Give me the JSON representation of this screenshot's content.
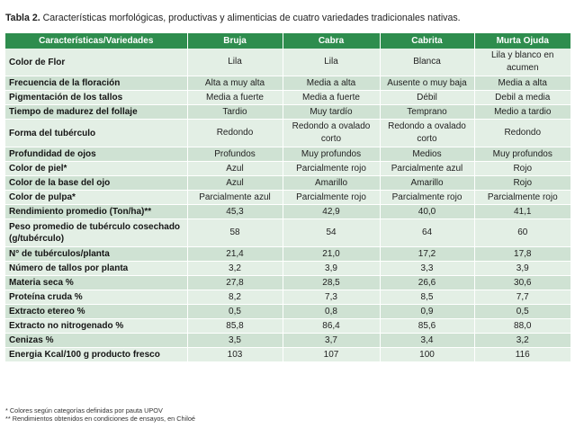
{
  "caption": {
    "label": "Tabla 2.",
    "text": "Características morfológicas, productivas y alimenticias de cuatro variedades tradicionales nativas."
  },
  "table": {
    "headers": [
      "Características/Variedades",
      "Bruja",
      "Cabra",
      "Cabrita",
      "Murta Ojuda"
    ],
    "rows": [
      {
        "label": "Color de Flor",
        "values": [
          "Lila",
          "Lila",
          "Blanca",
          "Lila y blanco en acumen"
        ],
        "tall": true
      },
      {
        "label": "Frecuencia de la floración",
        "values": [
          "Alta a muy alta",
          "Media a alta",
          "Ausente o muy baja",
          "Media a alta"
        ]
      },
      {
        "label": "Pigmentación de los tallos",
        "values": [
          "Media a fuerte",
          "Media a fuerte",
          "Débil",
          "Debil a media"
        ]
      },
      {
        "label": "Tiempo de madurez del follaje",
        "values": [
          "Tardio",
          "Muy tardío",
          "Temprano",
          "Medio a tardio"
        ]
      },
      {
        "label": "Forma del tubérculo",
        "values": [
          "Redondo",
          "Redondo a ovalado corto",
          "Redondo a ovalado corto",
          "Redondo"
        ],
        "tall": true
      },
      {
        "label": "Profundidad de ojos",
        "values": [
          "Profundos",
          "Muy profundos",
          "Medios",
          "Muy profundos"
        ]
      },
      {
        "label": "Color de piel*",
        "values": [
          "Azul",
          "Parcialmente rojo",
          "Parcialmente azul",
          "Rojo"
        ]
      },
      {
        "label": "Color de la base del ojo",
        "values": [
          "Azul",
          "Amarillo",
          "Amarillo",
          "Rojo"
        ]
      },
      {
        "label": "Color de pulpa*",
        "values": [
          "Parcialmente azul",
          "Parcialmente rojo",
          "Parcialmente rojo",
          "Parcialmente rojo"
        ]
      },
      {
        "label": "Rendimiento promedio (Ton/ha)**",
        "values": [
          "45,3",
          "42,9",
          "40,0",
          "41,1"
        ]
      },
      {
        "label": "Peso promedio de tubérculo cosechado (g/tubérculo)",
        "values": [
          "58",
          "54",
          "64",
          "60"
        ],
        "tall": true
      },
      {
        "label": "N° de tubérculos/planta",
        "values": [
          "21,4",
          "21,0",
          "17,2",
          "17,8"
        ]
      },
      {
        "label": "Número de tallos por planta",
        "values": [
          "3,2",
          "3,9",
          "3,3",
          "3,9"
        ]
      },
      {
        "label": "Materia seca %",
        "values": [
          "27,8",
          "28,5",
          "26,6",
          "30,6"
        ]
      },
      {
        "label": "Proteína cruda %",
        "values": [
          "8,2",
          "7,3",
          "8,5",
          "7,7"
        ]
      },
      {
        "label": "Extracto etereo %",
        "values": [
          "0,5",
          "0,8",
          "0,9",
          "0,5"
        ]
      },
      {
        "label": "Extracto no nitrogenado %",
        "values": [
          "85,8",
          "86,4",
          "85,6",
          "88,0"
        ]
      },
      {
        "label": "Cenizas %",
        "values": [
          "3,5",
          "3,7",
          "3,4",
          "3,2"
        ]
      },
      {
        "label": "Energia Kcal/100 g producto fresco",
        "values": [
          "103",
          "107",
          "100",
          "116"
        ]
      }
    ]
  },
  "notes": [
    "* Colores según categorías definidas por pauta UPOV",
    "** Rendimientos obtenidos en condiciones de ensayos, en Chiloé"
  ],
  "colors": {
    "header_bg": "#2e8d4e",
    "row_light": "#e3efe5",
    "row_dark": "#cfe2d3"
  }
}
